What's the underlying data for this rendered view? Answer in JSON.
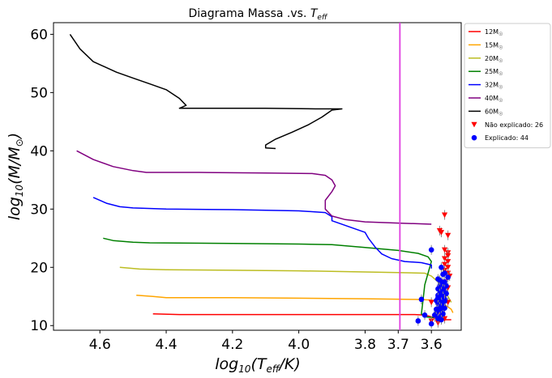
{
  "chart_data": {
    "type": "line",
    "title_main": "Diagrama Massa .vs. ",
    "title_sym": "T",
    "title_sub": "eff",
    "xlabel": {
      "pre": "log",
      "sub1": "10",
      "mid": "(T",
      "sub2": "eff",
      "post": "/K)"
    },
    "ylabel": {
      "pre": "log",
      "sub1": "10",
      "mid": "(M/M",
      "sub2": "⊙",
      "post": ")"
    },
    "xlim": [
      4.74,
      3.51
    ],
    "ylim": [
      9.2,
      62
    ],
    "x_ticks": [
      4.6,
      4.4,
      4.2,
      4.0,
      3.8,
      3.7,
      3.6
    ],
    "y_ticks": [
      10,
      20,
      30,
      40,
      50,
      60
    ],
    "vline": {
      "x": 3.695,
      "color": "#e040e0"
    },
    "series": [
      {
        "name": "12M",
        "color": "#ff0000",
        "points": [
          [
            4.44,
            12.0
          ],
          [
            4.36,
            11.9
          ],
          [
            4.2,
            11.9
          ],
          [
            4.0,
            11.9
          ],
          [
            3.8,
            11.9
          ],
          [
            3.65,
            11.9
          ],
          [
            3.62,
            11.8
          ],
          [
            3.6,
            11.5
          ],
          [
            3.58,
            11.2
          ],
          [
            3.56,
            11.0
          ],
          [
            3.54,
            11.0
          ]
        ]
      },
      {
        "name": "15M",
        "color": "#ffa500",
        "points": [
          [
            4.49,
            15.2
          ],
          [
            4.44,
            15.0
          ],
          [
            4.4,
            14.8
          ],
          [
            4.2,
            14.8
          ],
          [
            4.0,
            14.7
          ],
          [
            3.8,
            14.6
          ],
          [
            3.65,
            14.5
          ],
          [
            3.6,
            14.4
          ],
          [
            3.56,
            13.6
          ],
          [
            3.54,
            12.8
          ],
          [
            3.535,
            12.2
          ]
        ]
      },
      {
        "name": "20M",
        "color": "#bcbd22",
        "points": [
          [
            4.54,
            20.0
          ],
          [
            4.48,
            19.7
          ],
          [
            4.4,
            19.6
          ],
          [
            4.2,
            19.5
          ],
          [
            4.0,
            19.4
          ],
          [
            3.8,
            19.2
          ],
          [
            3.7,
            19.1
          ],
          [
            3.62,
            19.0
          ],
          [
            3.6,
            18.5
          ],
          [
            3.58,
            17.5
          ],
          [
            3.56,
            16.0
          ],
          [
            3.545,
            14.5
          ],
          [
            3.54,
            14.0
          ]
        ]
      },
      {
        "name": "25M",
        "color": "#008000",
        "points": [
          [
            4.59,
            25.0
          ],
          [
            4.56,
            24.6
          ],
          [
            4.5,
            24.3
          ],
          [
            4.45,
            24.2
          ],
          [
            4.2,
            24.1
          ],
          [
            4.0,
            24.0
          ],
          [
            3.9,
            23.9
          ],
          [
            3.8,
            23.4
          ],
          [
            3.7,
            22.9
          ],
          [
            3.64,
            22.4
          ],
          [
            3.61,
            21.8
          ],
          [
            3.6,
            21.0
          ],
          [
            3.61,
            19.0
          ],
          [
            3.62,
            17.0
          ],
          [
            3.625,
            14.5
          ],
          [
            3.63,
            12.0
          ],
          [
            3.62,
            11.5
          ],
          [
            3.58,
            11.3
          ]
        ]
      },
      {
        "name": "32M",
        "color": "#0000ff",
        "points": [
          [
            4.62,
            32.0
          ],
          [
            4.58,
            31.0
          ],
          [
            4.54,
            30.4
          ],
          [
            4.5,
            30.2
          ],
          [
            4.4,
            30.0
          ],
          [
            4.2,
            29.9
          ],
          [
            4.0,
            29.7
          ],
          [
            3.92,
            29.4
          ],
          [
            3.9,
            28.7
          ],
          [
            3.9,
            28.0
          ],
          [
            3.88,
            27.6
          ],
          [
            3.84,
            26.8
          ],
          [
            3.8,
            26.0
          ],
          [
            3.79,
            25.0
          ],
          [
            3.77,
            23.5
          ],
          [
            3.75,
            22.3
          ],
          [
            3.72,
            21.5
          ],
          [
            3.68,
            21.0
          ],
          [
            3.63,
            20.8
          ],
          [
            3.6,
            20.4
          ],
          [
            3.6,
            19.8
          ]
        ]
      },
      {
        "name": "40M",
        "color": "#800080",
        "points": [
          [
            4.67,
            40.0
          ],
          [
            4.62,
            38.5
          ],
          [
            4.56,
            37.3
          ],
          [
            4.5,
            36.6
          ],
          [
            4.46,
            36.3
          ],
          [
            4.3,
            36.3
          ],
          [
            4.1,
            36.2
          ],
          [
            3.96,
            36.1
          ],
          [
            3.92,
            35.8
          ],
          [
            3.9,
            35.0
          ],
          [
            3.89,
            34.0
          ],
          [
            3.9,
            33.0
          ],
          [
            3.92,
            31.5
          ],
          [
            3.92,
            30.0
          ],
          [
            3.9,
            28.8
          ],
          [
            3.86,
            28.2
          ],
          [
            3.8,
            27.8
          ],
          [
            3.7,
            27.6
          ],
          [
            3.6,
            27.4
          ]
        ]
      },
      {
        "name": "60M",
        "color": "#000000",
        "points": [
          [
            4.69,
            60.0
          ],
          [
            4.66,
            57.5
          ],
          [
            4.62,
            55.3
          ],
          [
            4.55,
            53.5
          ],
          [
            4.5,
            52.5
          ],
          [
            4.45,
            51.5
          ],
          [
            4.4,
            50.5
          ],
          [
            4.36,
            49.0
          ],
          [
            4.34,
            47.8
          ],
          [
            4.36,
            47.3
          ],
          [
            4.25,
            47.3
          ],
          [
            4.1,
            47.3
          ],
          [
            3.95,
            47.2
          ],
          [
            3.87,
            47.2
          ],
          [
            3.9,
            47.0
          ],
          [
            3.93,
            45.8
          ],
          [
            3.97,
            44.5
          ],
          [
            4.02,
            43.2
          ],
          [
            4.07,
            42.0
          ],
          [
            4.1,
            41.0
          ],
          [
            4.1,
            40.5
          ],
          [
            4.07,
            40.4
          ]
        ]
      }
    ],
    "scatter": [
      {
        "name": "Não explicado: 26",
        "color": "#ff0000",
        "marker": "triangle-down",
        "points": [
          [
            3.56,
            29.0
          ],
          [
            3.57,
            26.0
          ],
          [
            3.575,
            26.3
          ],
          [
            3.55,
            25.5
          ],
          [
            3.56,
            23.0
          ],
          [
            3.55,
            22.5
          ],
          [
            3.55,
            22.0
          ],
          [
            3.56,
            21.5
          ],
          [
            3.55,
            21.0
          ],
          [
            3.56,
            20.5
          ],
          [
            3.55,
            20.0
          ],
          [
            3.56,
            19.5
          ],
          [
            3.55,
            19.0
          ],
          [
            3.545,
            18.5
          ],
          [
            3.56,
            17.5
          ],
          [
            3.55,
            16.5
          ],
          [
            3.57,
            16.0
          ],
          [
            3.56,
            15.0
          ],
          [
            3.55,
            14.0
          ],
          [
            3.6,
            14.0
          ],
          [
            3.58,
            12.5
          ],
          [
            3.57,
            11.8
          ],
          [
            3.59,
            11.5
          ],
          [
            3.56,
            11.2
          ],
          [
            3.6,
            10.8
          ],
          [
            3.58,
            10.5
          ]
        ]
      },
      {
        "name": "Explicado: 44",
        "color": "#0000ff",
        "marker": "circle",
        "points": [
          [
            3.6,
            23.0
          ],
          [
            3.57,
            20.0
          ],
          [
            3.58,
            18.0
          ],
          [
            3.56,
            19.0
          ],
          [
            3.55,
            18.3
          ],
          [
            3.57,
            17.5
          ],
          [
            3.56,
            17.0
          ],
          [
            3.575,
            16.8
          ],
          [
            3.565,
            16.3
          ],
          [
            3.56,
            16.0
          ],
          [
            3.57,
            15.8
          ],
          [
            3.555,
            15.5
          ],
          [
            3.58,
            15.2
          ],
          [
            3.565,
            15.0
          ],
          [
            3.575,
            14.8
          ],
          [
            3.56,
            14.5
          ],
          [
            3.585,
            14.3
          ],
          [
            3.57,
            14.0
          ],
          [
            3.58,
            13.8
          ],
          [
            3.565,
            13.5
          ],
          [
            3.575,
            13.2
          ],
          [
            3.56,
            13.0
          ],
          [
            3.58,
            12.8
          ],
          [
            3.57,
            12.5
          ],
          [
            3.585,
            12.2
          ],
          [
            3.565,
            12.0
          ],
          [
            3.59,
            11.8
          ],
          [
            3.575,
            11.5
          ],
          [
            3.58,
            11.2
          ],
          [
            3.57,
            11.0
          ],
          [
            3.63,
            14.5
          ],
          [
            3.62,
            11.8
          ],
          [
            3.64,
            10.8
          ],
          [
            3.6,
            10.3
          ],
          [
            3.555,
            16.8
          ],
          [
            3.575,
            17.8
          ],
          [
            3.565,
            18.8
          ],
          [
            3.58,
            16.3
          ],
          [
            3.56,
            14.2
          ],
          [
            3.57,
            13.0
          ],
          [
            3.585,
            12.8
          ],
          [
            3.575,
            15.5
          ],
          [
            3.56,
            17.5
          ],
          [
            3.58,
            14.8
          ]
        ]
      }
    ],
    "legend_sub": "☉",
    "legend_placement": "outside upper-right"
  }
}
